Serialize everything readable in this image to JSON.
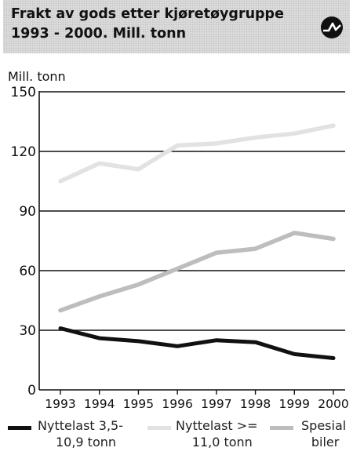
{
  "title": {
    "line1": "Frakt av gods etter kjøretøygruppe",
    "line2": "1993 - 2000. Mill. tonn"
  },
  "logo_icon": "wave-circle-icon",
  "chart_data": {
    "type": "line",
    "title": "Frakt av gods etter kjøretøygruppe 1993 - 2000. Mill. tonn",
    "ylabel": "Mill. tonn",
    "xlabel": "",
    "ylim": [
      0,
      150
    ],
    "yticks": [
      0,
      30,
      60,
      90,
      120,
      150
    ],
    "x": [
      "1993",
      "1994",
      "1995",
      "1996",
      "1997",
      "1998",
      "1999",
      "2000"
    ],
    "grid": "horizontal",
    "legend_position": "bottom",
    "series": [
      {
        "name": "Nyttelast 3,5-10,9 tonn",
        "label_lines": [
          "Nyttelast 3,5-",
          "10,9 tonn"
        ],
        "color": "#111111",
        "values": [
          31,
          26,
          24.5,
          22,
          25,
          24,
          18,
          16
        ]
      },
      {
        "name": "Nyttelast >= 11,0 tonn",
        "label_lines": [
          "Nyttelast >=",
          "11,0 tonn"
        ],
        "color": "#e2e2e2",
        "values": [
          105,
          114,
          111,
          123,
          124,
          127,
          129,
          133
        ]
      },
      {
        "name": "Spesial biler",
        "label_lines": [
          "Spesial",
          "biler"
        ],
        "color": "#bdbdbd",
        "values": [
          40,
          47,
          53,
          61,
          69,
          71,
          79,
          76
        ]
      }
    ]
  }
}
